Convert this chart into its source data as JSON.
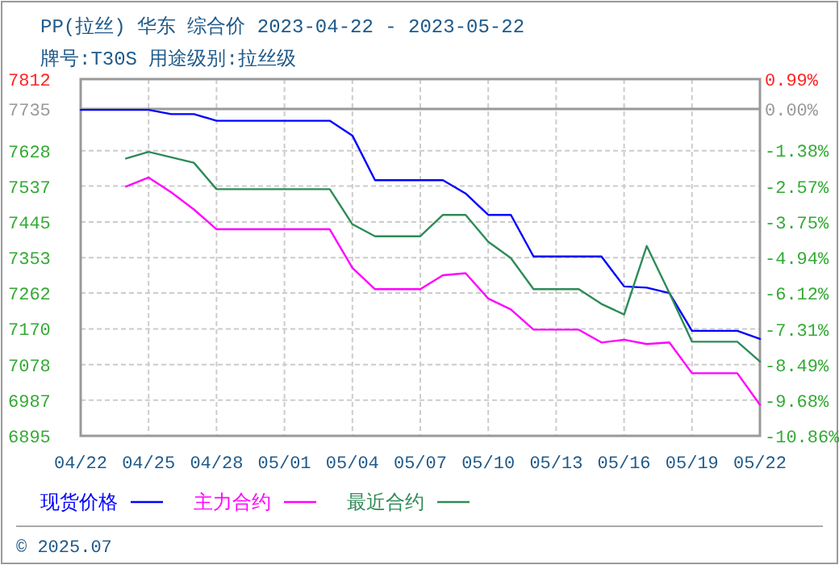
{
  "chart_data": {
    "type": "line",
    "title": "PP(拉丝) 华东 综合价 2023-04-22 - 2023-05-22",
    "subtitle": "牌号:T30S 用途级别:拉丝级",
    "x": [
      "2023-04-22",
      "2023-04-23",
      "2023-04-24",
      "2023-04-25",
      "2023-04-26",
      "2023-04-27",
      "2023-04-28",
      "2023-04-29",
      "2023-04-30",
      "2023-05-01",
      "2023-05-02",
      "2023-05-03",
      "2023-05-04",
      "2023-05-05",
      "2023-05-06",
      "2023-05-07",
      "2023-05-08",
      "2023-05-09",
      "2023-05-10",
      "2023-05-11",
      "2023-05-12",
      "2023-05-13",
      "2023-05-14",
      "2023-05-15",
      "2023-05-16",
      "2023-05-17",
      "2023-05-18",
      "2023-05-19",
      "2023-05-20",
      "2023-05-21",
      "2023-05-22"
    ],
    "series": [
      {
        "name": "现货价格",
        "color": "#0000ff",
        "values": [
          7733,
          7733,
          7733,
          7733,
          7722,
          7722,
          7705,
          7705,
          7705,
          7705,
          7705,
          7705,
          7667,
          7552,
          7552,
          7552,
          7552,
          7518,
          7463,
          7463,
          7356,
          7356,
          7356,
          7356,
          7279,
          7276,
          7262,
          7165,
          7165,
          7165,
          7144
        ]
      },
      {
        "name": "主力合约",
        "color": "#ff00ff",
        "values": [
          null,
          null,
          7536,
          7559,
          7521,
          7477,
          7426,
          7426,
          7426,
          7426,
          7426,
          7426,
          7327,
          7272,
          7272,
          7272,
          7308,
          7313,
          7248,
          7220,
          7168,
          7168,
          7168,
          7135,
          7142,
          7131,
          7135,
          7056,
          7056,
          7056,
          6975
        ]
      },
      {
        "name": "最近合约",
        "color": "#2e8b57",
        "values": [
          null,
          null,
          7608,
          7625,
          7611,
          7597,
          7529,
          7529,
          7529,
          7529,
          7529,
          7529,
          7439,
          7408,
          7408,
          7408,
          7463,
          7463,
          7394,
          7352,
          7272,
          7272,
          7272,
          7234,
          7207,
          7383,
          7262,
          7137,
          7137,
          7137,
          7086
        ]
      }
    ],
    "xlim": [
      "2023-04-22",
      "2023-05-22"
    ],
    "xticks": [
      {
        "value": "2023-04-22",
        "label": "04/22"
      },
      {
        "value": "2023-04-25",
        "label": "04/25"
      },
      {
        "value": "2023-04-28",
        "label": "04/28"
      },
      {
        "value": "2023-05-01",
        "label": "05/01"
      },
      {
        "value": "2023-05-04",
        "label": "05/04"
      },
      {
        "value": "2023-05-07",
        "label": "05/07"
      },
      {
        "value": "2023-05-10",
        "label": "05/10"
      },
      {
        "value": "2023-05-13",
        "label": "05/13"
      },
      {
        "value": "2023-05-16",
        "label": "05/16"
      },
      {
        "value": "2023-05-19",
        "label": "05/19"
      },
      {
        "value": "2023-05-22",
        "label": "05/22"
      }
    ],
    "ylim": [
      6895,
      7812
    ],
    "yticks": [
      7812,
      7735,
      7628,
      7537,
      7445,
      7353,
      7262,
      7170,
      7078,
      6987,
      6895
    ],
    "y2lim": [
      -10.86,
      0.99
    ],
    "y2ticks": [
      {
        "value": 0.99,
        "label": "0.99%"
      },
      {
        "value": 0,
        "label": "0.00%"
      },
      {
        "value": -1.38,
        "label": "-1.38%"
      },
      {
        "value": -2.57,
        "label": "-2.57%"
      },
      {
        "value": -3.75,
        "label": "-3.75%"
      },
      {
        "value": -4.94,
        "label": "-4.94%"
      },
      {
        "value": -6.12,
        "label": "-6.12%"
      },
      {
        "value": -7.31,
        "label": "-7.31%"
      },
      {
        "value": -8.49,
        "label": "-8.49%"
      },
      {
        "value": -9.68,
        "label": "-9.68%"
      },
      {
        "value": -10.86,
        "label": "-10.86%"
      }
    ],
    "ref_lines": [
      {
        "axis": "y",
        "value": 7735,
        "color": "#999999",
        "line_style": "solid"
      }
    ],
    "grid": true,
    "legend": "bottom",
    "line_style": "solid",
    "marker": "none",
    "annotations": [
      "© 2025.07"
    ]
  }
}
